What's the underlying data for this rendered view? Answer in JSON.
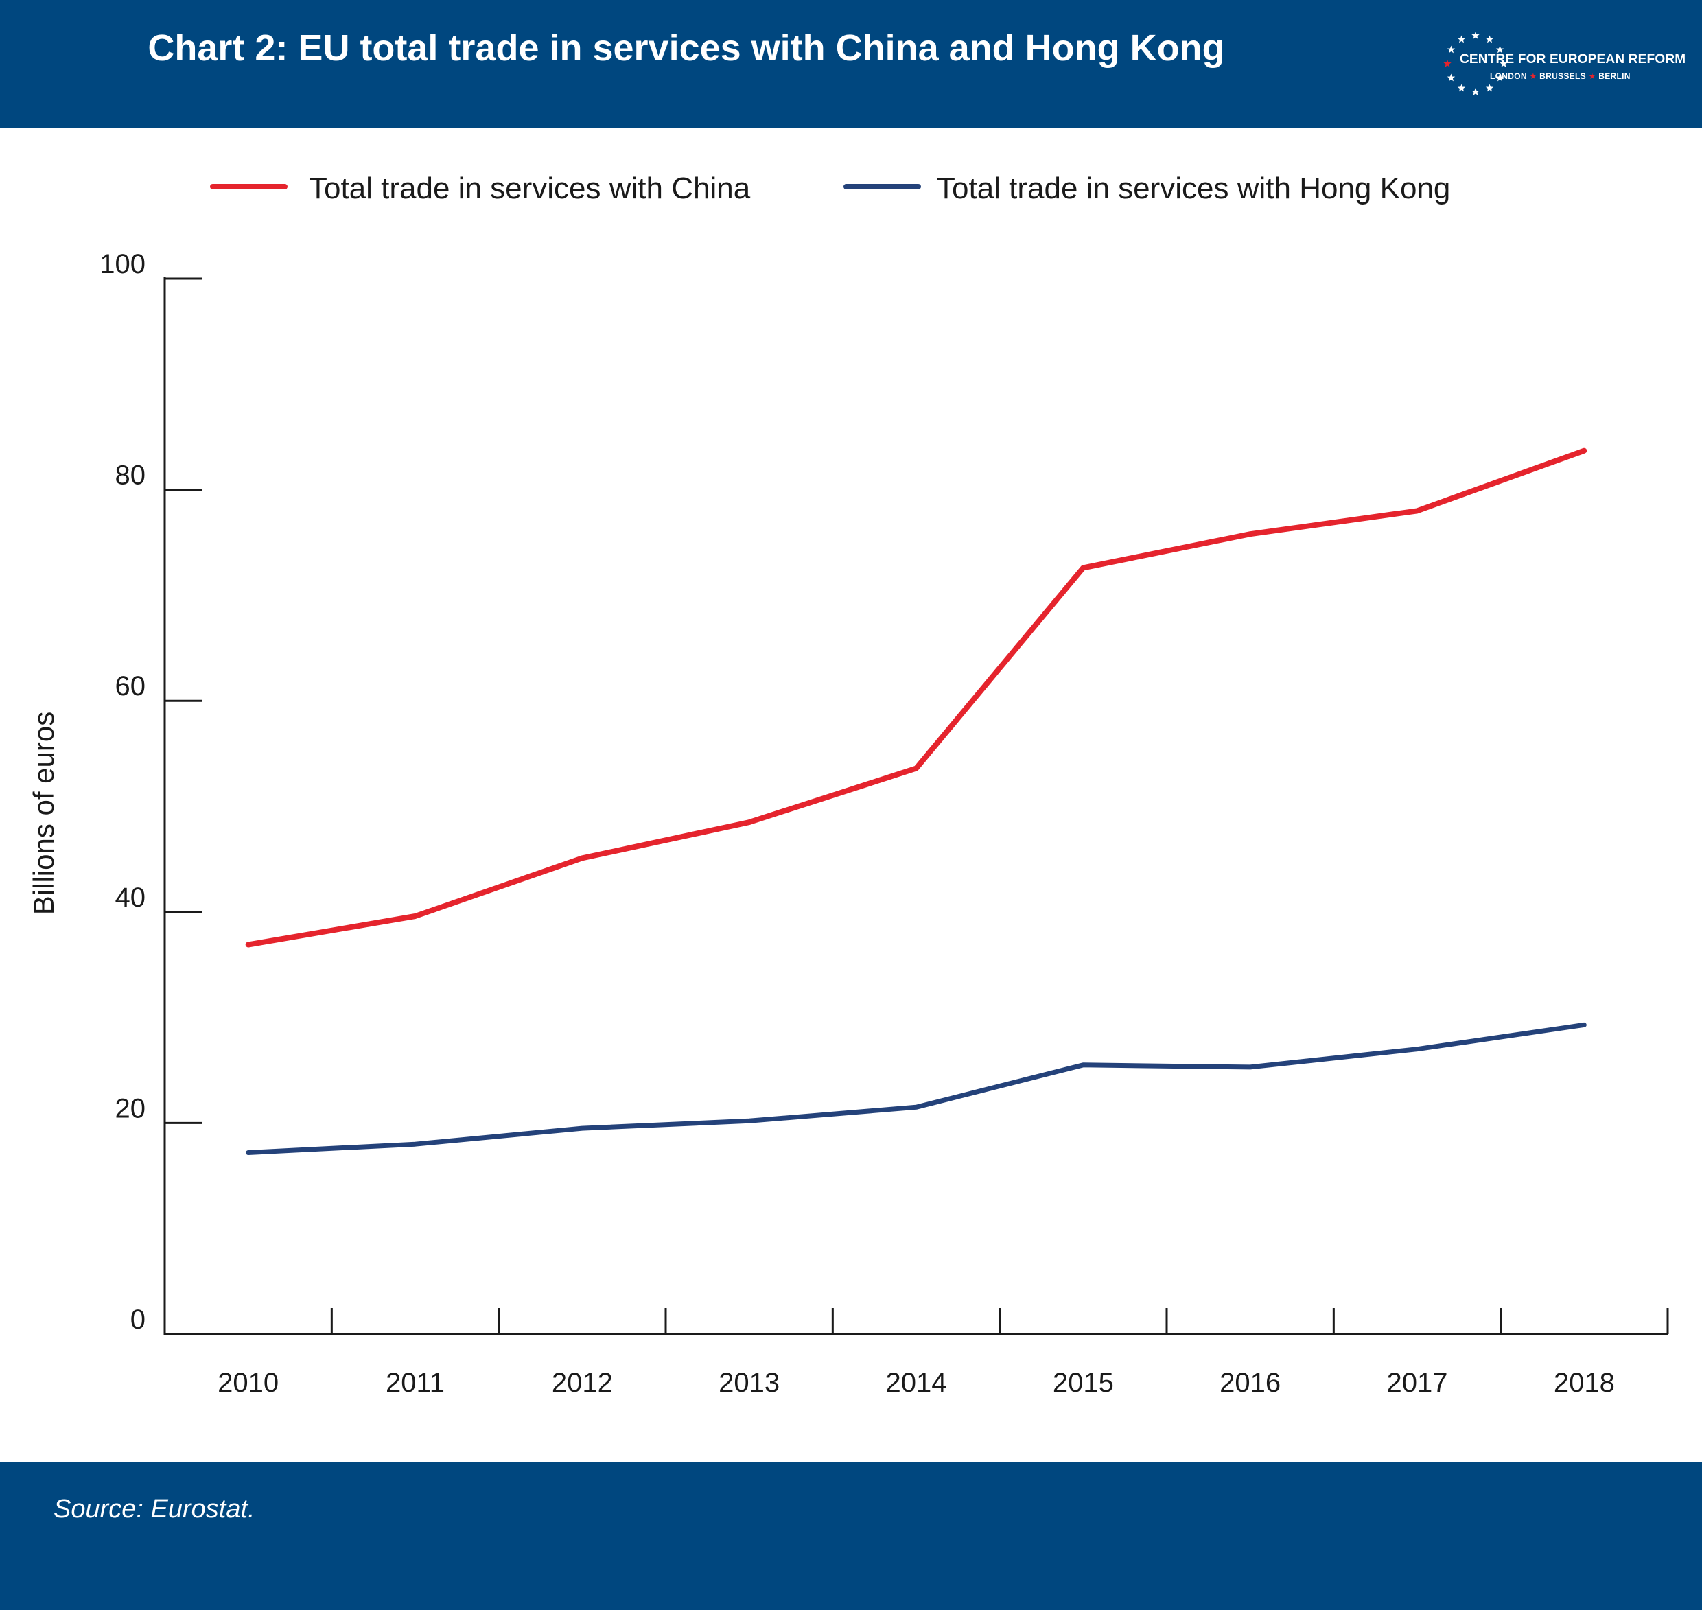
{
  "header": {
    "title": "Chart 2: EU total trade in services with China and Hong Kong",
    "logo_text": "CENTRE FOR EUROPEAN REFORM",
    "logo_cities": [
      "LONDON",
      "BRUSSELS",
      "BERLIN"
    ]
  },
  "footer": {
    "source": "Source: Eurostat."
  },
  "colors": {
    "banner": "#00477f",
    "china": "#e5242d",
    "hong_kong": "#24427a",
    "axis": "#1a1a1a"
  },
  "chart_data": {
    "type": "line",
    "title": "Chart 2: EU total trade in services with China and Hong Kong",
    "xlabel": "",
    "ylabel": "Billions of euros",
    "ylim": [
      0,
      100
    ],
    "y_ticks": [
      0,
      20,
      40,
      60,
      80,
      100
    ],
    "grid": false,
    "legend_position": "top",
    "categories": [
      "2010",
      "2011",
      "2012",
      "2013",
      "2014",
      "2015",
      "2016",
      "2017",
      "2018"
    ],
    "series": [
      {
        "name": "Total trade in services with China",
        "color": "#e5242d",
        "values": [
          36.9,
          39.6,
          45.1,
          48.5,
          53.6,
          72.6,
          75.8,
          78.0,
          83.7
        ]
      },
      {
        "name": "Total trade in services with Hong Kong",
        "color": "#24427a",
        "values": [
          17.2,
          18.0,
          19.5,
          20.2,
          21.5,
          25.5,
          25.3,
          27.0,
          29.3
        ]
      }
    ]
  }
}
